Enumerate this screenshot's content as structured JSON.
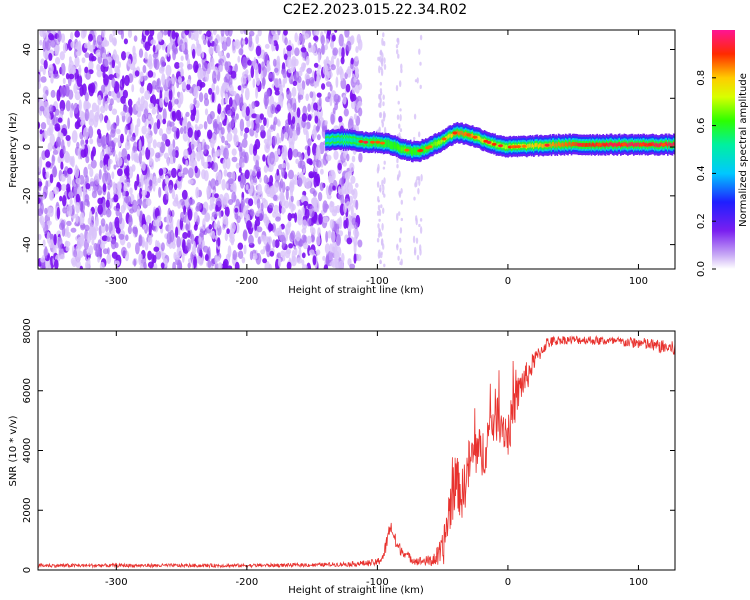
{
  "page_title": "C2E2.2023.015.22.34.R02",
  "chart_data": [
    {
      "type": "heatmap",
      "title": "C2E2.2023.015.22.34.R02",
      "xlabel": "Height of straight line (km)",
      "ylabel": "Frequency (Hz)",
      "xlim": [
        -360,
        128
      ],
      "ylim": [
        -50,
        48
      ],
      "x_ticks": [
        -300,
        -200,
        -100,
        0,
        100
      ],
      "x_tick_labels": [
        "-300",
        "-200",
        "-100",
        "0",
        "100"
      ],
      "y_ticks": [
        -40,
        -20,
        0,
        20,
        40
      ],
      "y_tick_labels": [
        "-40",
        "-20",
        "0",
        "20",
        "40"
      ],
      "colorbar": {
        "label": "Normalized spectral amplitude",
        "range": [
          0,
          1
        ],
        "ticks": [
          0,
          0.2,
          0.4,
          0.6,
          0.8
        ],
        "tick_labels": [
          "0.0",
          "0.2",
          "0.4",
          "0.6",
          "0.8"
        ],
        "colormap": "rainbow (white-violet-blue-cyan-green-yellow-red-magenta)"
      },
      "noise_region": {
        "x_range": [
          -360,
          -113
        ],
        "frequency_range": [
          -50,
          48
        ],
        "amplitude": 0.1,
        "description_color": "#8a2be2"
      },
      "sparse_region": {
        "x_range": [
          -113,
          -65
        ],
        "amplitude": 0.05
      },
      "signal_track": {
        "x": [
          -140,
          -120,
          -110,
          -100,
          -90,
          -80,
          -70,
          -60,
          -50,
          -40,
          -30,
          -20,
          -10,
          0,
          20,
          40,
          60,
          80,
          100,
          128
        ],
        "frequency": [
          3,
          3,
          2,
          2,
          1,
          -1,
          -2,
          0,
          3,
          6,
          5,
          3,
          1,
          0,
          0.5,
          1,
          1,
          1,
          1,
          1
        ],
        "amplitude": [
          0.4,
          0.5,
          0.55,
          0.6,
          0.6,
          0.65,
          0.6,
          0.65,
          0.7,
          0.85,
          0.85,
          0.75,
          0.7,
          0.7,
          0.8,
          0.85,
          0.9,
          0.95,
          0.95,
          0.95
        ]
      },
      "grid": false
    },
    {
      "type": "line",
      "xlabel": "Height of straight line (km)",
      "ylabel": "SNR (10 * v/v)",
      "xlim": [
        -360,
        128
      ],
      "ylim": [
        0,
        8000
      ],
      "x_ticks": [
        -300,
        -200,
        -100,
        0,
        100
      ],
      "x_tick_labels": [
        "-300",
        "-200",
        "-100",
        "0",
        "100"
      ],
      "y_ticks": [
        0,
        2000,
        4000,
        6000,
        8000
      ],
      "y_tick_labels": [
        "0",
        "2000",
        "4000",
        "6000",
        "8000"
      ],
      "series": [
        {
          "color": "#e8322e",
          "x": [
            -360,
            -300,
            -250,
            -200,
            -150,
            -120,
            -100,
            -95,
            -90,
            -85,
            -80,
            -75,
            -70,
            -65,
            -60,
            -55,
            -50,
            -45,
            -40,
            -35,
            -30,
            -25,
            -20,
            -15,
            -10,
            -5,
            0,
            5,
            10,
            15,
            20,
            30,
            40,
            60,
            80,
            100,
            128
          ],
          "y": [
            150,
            150,
            150,
            150,
            170,
            200,
            250,
            500,
            1500,
            800,
            600,
            400,
            300,
            300,
            300,
            400,
            600,
            2000,
            3000,
            2500,
            3500,
            4000,
            3800,
            4500,
            5200,
            5000,
            4500,
            5500,
            6200,
            6500,
            7000,
            7600,
            7700,
            7700,
            7650,
            7600,
            7400
          ],
          "noise_amplitude": [
            60,
            60,
            60,
            60,
            60,
            80,
            120,
            250,
            250,
            250,
            150,
            150,
            150,
            150,
            200,
            300,
            600,
            900,
            900,
            900,
            900,
            900,
            900,
            900,
            900,
            800,
            800,
            700,
            600,
            500,
            300,
            200,
            150,
            150,
            150,
            200,
            250
          ]
        }
      ],
      "grid": false
    }
  ]
}
